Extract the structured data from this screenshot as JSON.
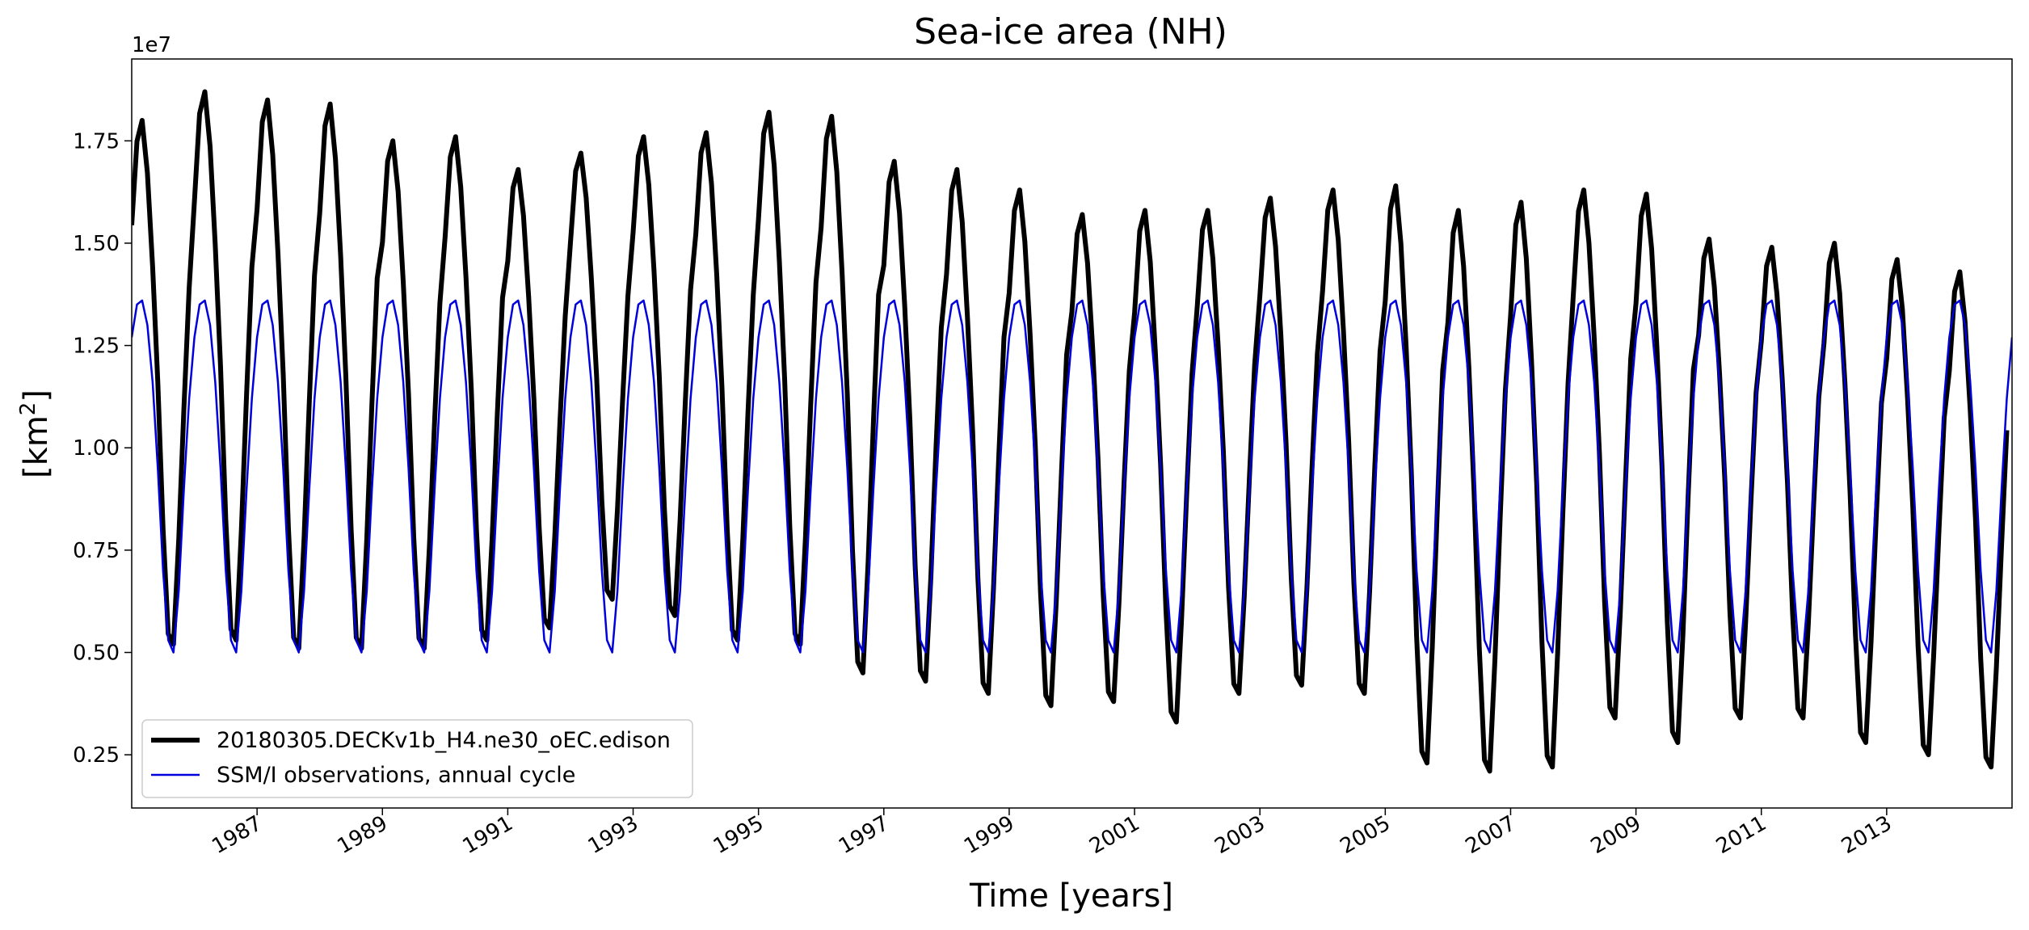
{
  "chart_data": {
    "type": "line",
    "title": "Sea-ice area (NH)",
    "xlabel": "Time [years]",
    "ylabel_base": "[km",
    "ylabel_sup": "2",
    "ylabel_end": "]",
    "y_offset_label": "1e7",
    "xlim": [
      1985.0,
      2015.0
    ],
    "ylim": [
      0.12,
      1.95
    ],
    "y_scale": 10000000,
    "x_ticks": [
      1987,
      1989,
      1991,
      1993,
      1995,
      1997,
      1999,
      2001,
      2003,
      2005,
      2007,
      2009,
      2011,
      2013
    ],
    "x_tick_labels": [
      "1987",
      "1989",
      "1991",
      "1993",
      "1995",
      "1997",
      "1999",
      "2001",
      "2003",
      "2005",
      "2007",
      "2009",
      "2011",
      "2013"
    ],
    "y_ticks": [
      0.25,
      0.5,
      0.75,
      1.0,
      1.25,
      1.5,
      1.75
    ],
    "y_tick_labels": [
      "0.25",
      "0.50",
      "0.75",
      "1.00",
      "1.25",
      "1.50",
      "1.75"
    ],
    "series": [
      {
        "name": "20180305.DECKv1b_H4.ne30_oEC.edison",
        "color": "#000000",
        "kind": "model-monthly",
        "start_year": 1985,
        "annual_max": [
          1.8,
          1.87,
          1.85,
          1.84,
          1.75,
          1.76,
          1.68,
          1.72,
          1.76,
          1.77,
          1.82,
          1.81,
          1.7,
          1.68,
          1.63,
          1.57,
          1.58,
          1.58,
          1.61,
          1.63,
          1.64,
          1.58,
          1.6,
          1.63,
          1.62,
          1.51,
          1.49,
          1.5,
          1.46,
          1.43
        ],
        "annual_min": [
          0.52,
          0.53,
          0.51,
          0.51,
          0.51,
          0.53,
          0.56,
          0.63,
          0.59,
          0.53,
          0.52,
          0.45,
          0.43,
          0.4,
          0.37,
          0.38,
          0.33,
          0.4,
          0.42,
          0.4,
          0.23,
          0.21,
          0.22,
          0.34,
          0.28,
          0.34,
          0.34,
          0.28,
          0.25,
          0.22
        ]
      },
      {
        "name": "SSM/I observations, annual cycle",
        "color": "#0000dd",
        "kind": "climatology",
        "start_year": 1985,
        "monthly_cycle": [
          1.27,
          1.35,
          1.36,
          1.3,
          1.16,
          0.95,
          0.7,
          0.53,
          0.5,
          0.65,
          0.9,
          1.12
        ]
      }
    ],
    "legend": {
      "placement": "lower-left",
      "entries": [
        "20180305.DECKv1b_H4.ne30_oEC.edison",
        "SSM/I observations, annual cycle"
      ]
    }
  }
}
